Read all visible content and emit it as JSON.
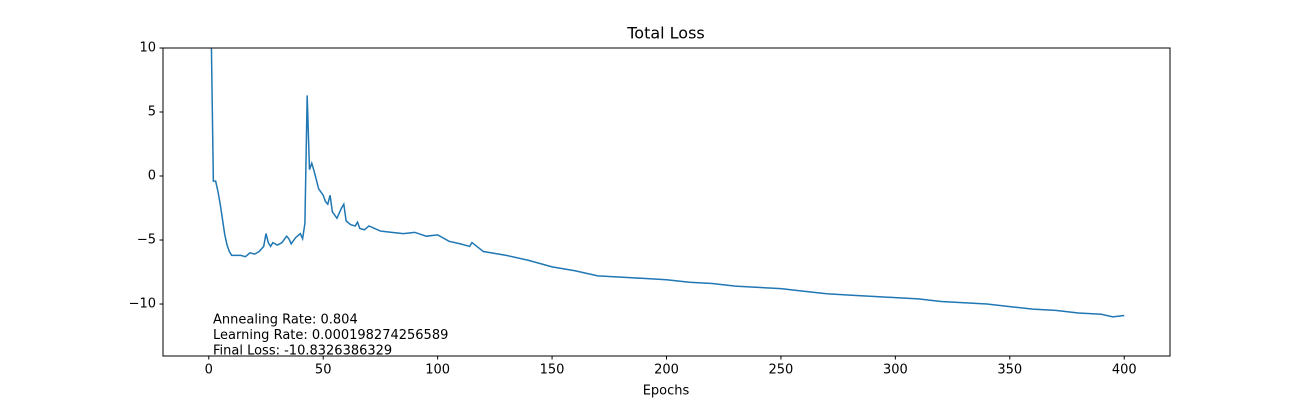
{
  "chart_data": {
    "type": "line",
    "title": "Total Loss",
    "x_label": "Epochs",
    "x": [
      1,
      2,
      3,
      4,
      5,
      6,
      7,
      8,
      9,
      10,
      12,
      14,
      16,
      18,
      20,
      22,
      24,
      25,
      26,
      27,
      28,
      30,
      32,
      34,
      35,
      36,
      38,
      40,
      41,
      42,
      43,
      44,
      45,
      46,
      47,
      48,
      50,
      51,
      52,
      53,
      54,
      56,
      58,
      59,
      60,
      62,
      64,
      65,
      66,
      68,
      70,
      75,
      80,
      85,
      90,
      95,
      100,
      105,
      110,
      114,
      115,
      120,
      130,
      140,
      150,
      160,
      170,
      180,
      190,
      200,
      210,
      220,
      230,
      240,
      250,
      260,
      270,
      280,
      290,
      300,
      310,
      320,
      330,
      340,
      350,
      360,
      370,
      380,
      390,
      395,
      400
    ],
    "series": [
      {
        "name": "Total Loss",
        "color": "#1f77b4",
        "values": [
          12,
          -0.4,
          -0.4,
          -1.2,
          -2.2,
          -3.4,
          -4.6,
          -5.4,
          -5.9,
          -6.2,
          -6.2,
          -6.2,
          -6.3,
          -6.0,
          -6.1,
          -5.9,
          -5.5,
          -4.5,
          -5.2,
          -5.5,
          -5.2,
          -5.4,
          -5.2,
          -4.7,
          -4.9,
          -5.3,
          -4.8,
          -4.5,
          -4.9,
          -3.7,
          6.3,
          0.5,
          1.0,
          0.4,
          -0.3,
          -1.0,
          -1.5,
          -2.0,
          -2.2,
          -1.5,
          -2.8,
          -3.3,
          -2.5,
          -2.2,
          -3.5,
          -3.8,
          -3.9,
          -3.6,
          -4.1,
          -4.2,
          -3.9,
          -4.3,
          -4.4,
          -4.5,
          -4.4,
          -4.7,
          -4.6,
          -5.1,
          -5.3,
          -5.5,
          -5.2,
          -5.9,
          -6.2,
          -6.6,
          -7.1,
          -7.4,
          -7.8,
          -7.9,
          -8.0,
          -8.1,
          -8.3,
          -8.4,
          -8.6,
          -8.7,
          -8.8,
          -9.0,
          -9.2,
          -9.3,
          -9.4,
          -9.5,
          -9.6,
          -9.8,
          -9.9,
          -10.0,
          -10.2,
          -10.4,
          -10.5,
          -10.7,
          -10.8,
          -11.0,
          -10.9
        ]
      }
    ],
    "xlim": [
      -20,
      420
    ],
    "xticks": [
      0,
      50,
      100,
      150,
      200,
      250,
      300,
      350,
      400
    ],
    "ylim": [
      -14.06,
      10
    ],
    "yticks": [
      {
        "value": -10,
        "label": "−10"
      },
      {
        "value": -5,
        "label": "−5"
      },
      0,
      5,
      10
    ],
    "annotations": [
      "Annealing Rate: 0.804",
      "Learning Rate: 0.000198274256589",
      "Final Loss: -10.8326386329"
    ],
    "grid": false
  }
}
